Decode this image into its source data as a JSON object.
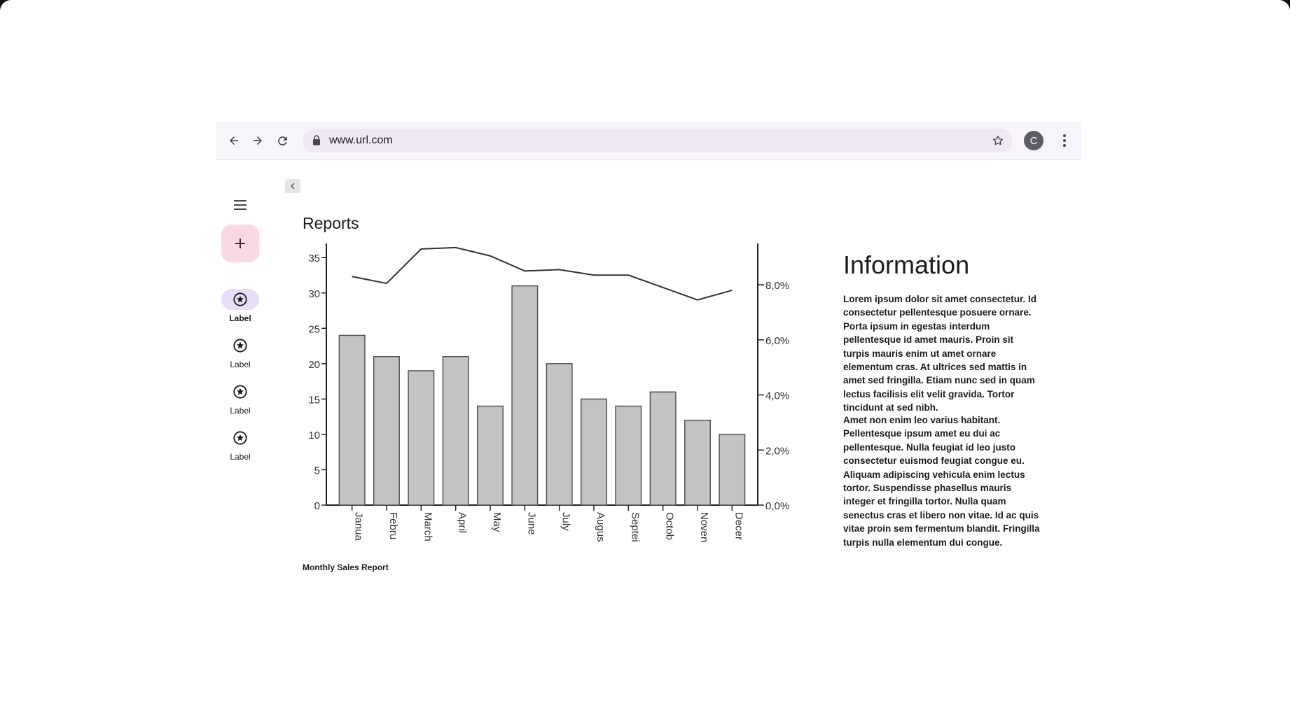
{
  "browser": {
    "url": "www.url.com",
    "avatar_letter": "C"
  },
  "nav_rail": {
    "items": [
      {
        "label": "Label",
        "icon": "star-circle-icon",
        "active": true
      },
      {
        "label": "Label",
        "icon": "star-circle-icon",
        "active": false
      },
      {
        "label": "Label",
        "icon": "star-circle-icon",
        "active": false
      },
      {
        "label": "Label",
        "icon": "star-circle-icon",
        "active": false
      }
    ],
    "fab_icon": "plus-icon",
    "active_color": "#e8def8",
    "fab_color": "#fbd9e3"
  },
  "main": {
    "title": "Reports",
    "caption": "Monthly Sales Report"
  },
  "info": {
    "title": "Information",
    "paragraph1": "Lorem ipsum dolor sit amet consectetur. Id consectetur pellentesque posuere ornare. Porta ipsum in egestas interdum pellentesque id amet mauris. Proin sit turpis mauris enim ut amet ornare elementum cras. At ultrices sed mattis in amet sed fringilla. Etiam nunc sed in quam lectus facilisis elit velit gravida. Tortor tincidunt at sed nibh.",
    "paragraph2": "Amet non enim leo varius habitant. Pellentesque ipsum amet eu dui ac pellentesque. Nulla feugiat id leo justo consectetur euismod feugiat congue eu. Aliquam adipiscing vehicula enim lectus tortor. Suspendisse phasellus mauris integer et fringilla tortor. Nulla quam senectus cras et libero non vitae. Id ac quis vitae proin sem fermentum blandit. Fringilla turpis nulla elementum dui congue."
  },
  "chart_data": {
    "type": "bar",
    "categories": [
      "Janua",
      "Febru",
      "March",
      "April",
      "May",
      "June",
      "July",
      "Augus",
      "Septei",
      "Octob",
      "Noven",
      "Decer"
    ],
    "series": [
      {
        "type": "bar",
        "axis": "left",
        "values": [
          24,
          21,
          19,
          21,
          14,
          31,
          20,
          15,
          14,
          16,
          12,
          10
        ]
      },
      {
        "type": "line",
        "axis": "right",
        "values": [
          8.3,
          8.05,
          9.3,
          9.35,
          9.05,
          8.5,
          8.55,
          8.35,
          8.35,
          7.9,
          7.45,
          7.8
        ]
      }
    ],
    "y_left": {
      "min": 0,
      "max": 37,
      "ticks": [
        0,
        5,
        10,
        15,
        20,
        25,
        30,
        35
      ],
      "tick_labels": [
        "0",
        "5",
        "10",
        "15",
        "20",
        "25",
        "30",
        "35"
      ]
    },
    "y_right": {
      "min": 0,
      "max": 9.5,
      "ticks": [
        0,
        2,
        4,
        6,
        8
      ],
      "tick_labels": [
        "0,0%",
        "2,0%",
        "4,0%",
        "6,0%",
        "8,0%"
      ]
    },
    "title": "",
    "xlabel": "",
    "ylabel": "",
    "grid": false,
    "bar_fill": "#c3c3c3",
    "bar_stroke": "#555555",
    "line_color": "#333333"
  }
}
